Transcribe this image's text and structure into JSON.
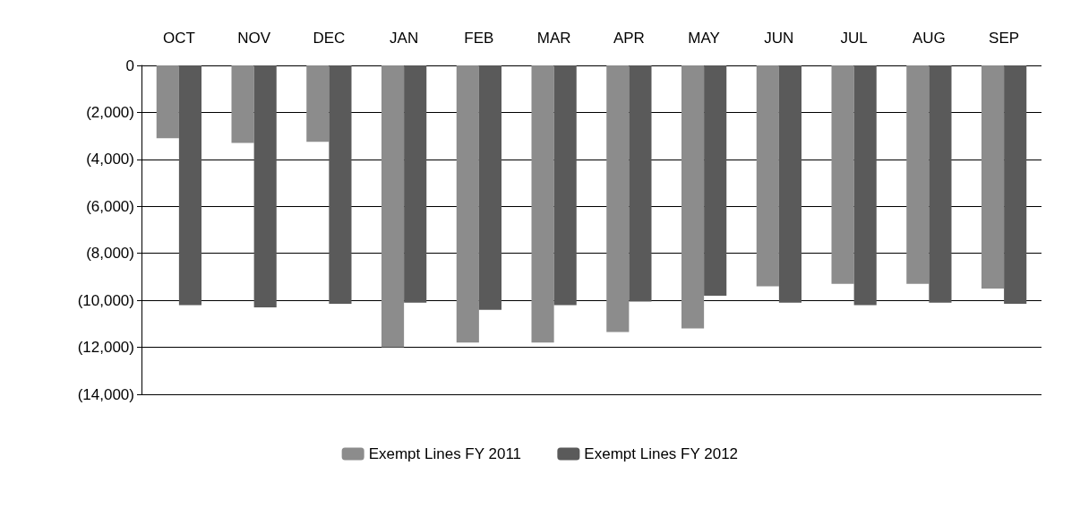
{
  "chart_data": {
    "type": "bar",
    "categories": [
      "OCT",
      "NOV",
      "DEC",
      "JAN",
      "FEB",
      "MAR",
      "APR",
      "MAY",
      "JUN",
      "JUL",
      "AUG",
      "SEP"
    ],
    "series": [
      {
        "name": "Exempt Lines FY 2011",
        "color": "#8c8c8c",
        "values": [
          -3100,
          -3300,
          -3250,
          -12000,
          -11800,
          -11800,
          -11350,
          -11200,
          -9400,
          -9300,
          -9300,
          -9500
        ]
      },
      {
        "name": "Exempt Lines FY 2012",
        "color": "#5a5a5a",
        "values": [
          -10200,
          -10300,
          -10150,
          -10100,
          -10400,
          -10200,
          -10050,
          -9800,
          -10100,
          -10200,
          -10100,
          -10150
        ]
      }
    ],
    "ylim": [
      -14000,
      0
    ],
    "yticks": [
      {
        "value": 0,
        "label": "0"
      },
      {
        "value": -2000,
        "label": "(2,000)"
      },
      {
        "value": -4000,
        "label": "(4,000)"
      },
      {
        "value": -6000,
        "label": "(6,000)"
      },
      {
        "value": -8000,
        "label": "(8,000)"
      },
      {
        "value": -10000,
        "label": "(10,000)"
      },
      {
        "value": -12000,
        "label": "(12,000)"
      },
      {
        "value": -14000,
        "label": "(14,000)"
      }
    ],
    "grid": "y",
    "legend": "bottom"
  }
}
